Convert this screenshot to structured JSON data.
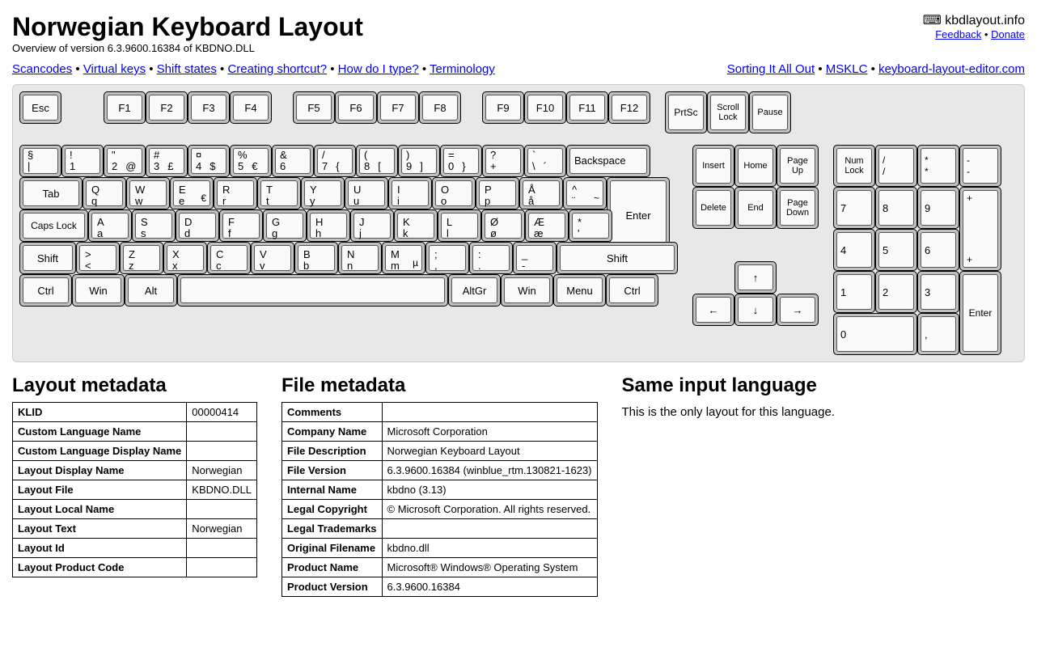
{
  "header": {
    "title": "Norwegian Keyboard Layout",
    "subtitle": "Overview of version 6.3.9600.16384 of KBDNO.DLL",
    "site_icon": "⌨",
    "site_name": "kbdlayout.info",
    "feedback": "Feedback",
    "donate": "Donate"
  },
  "nav_left": [
    "Scancodes",
    "Virtual keys",
    "Shift states",
    "Creating shortcut?",
    "How do I type?",
    "Terminology"
  ],
  "nav_right": [
    "Sorting It All Out",
    "MSKLC",
    "keyboard-layout-editor.com"
  ],
  "func": {
    "esc": "Esc",
    "f1": "F1",
    "f2": "F2",
    "f3": "F3",
    "f4": "F4",
    "f5": "F5",
    "f6": "F6",
    "f7": "F7",
    "f8": "F8",
    "f9": "F9",
    "f10": "F10",
    "f11": "F11",
    "f12": "F12",
    "prtsc": "PrtSc",
    "scroll": "Scroll Lock",
    "pause": "Pause"
  },
  "nav": {
    "insert": "Insert",
    "home": "Home",
    "pgup": "Page Up",
    "delete": "Delete",
    "end": "End",
    "pgdn": "Page Down",
    "up": "↑",
    "down": "↓",
    "left": "←",
    "right": "→"
  },
  "numpad": {
    "numlock": "Num Lock",
    "div_t": "/",
    "div_b": "/",
    "mul_t": "*",
    "mul_b": "*",
    "sub_t": "-",
    "sub_b": "-",
    "plus_t": "+",
    "plus_b": "+",
    "enter": "Enter",
    "dot": ",",
    "n0": "0",
    "n1": "1",
    "n2": "2",
    "n3": "3",
    "n4": "4",
    "n5": "5",
    "n6": "6",
    "n7": "7",
    "n8": "8",
    "n9": "9"
  },
  "numrow": [
    {
      "t": "§",
      "b": "|",
      "a": ""
    },
    {
      "t": "!",
      "b": "1",
      "a": ""
    },
    {
      "t": "\"",
      "b": "2",
      "a": "@"
    },
    {
      "t": "#",
      "b": "3",
      "a": "£"
    },
    {
      "t": "¤",
      "b": "4",
      "a": "$"
    },
    {
      "t": "%",
      "b": "5",
      "a": "€"
    },
    {
      "t": "&",
      "b": "6",
      "a": ""
    },
    {
      "t": "/",
      "b": "7",
      "a": "{"
    },
    {
      "t": "(",
      "b": "8",
      "a": "["
    },
    {
      "t": ")",
      "b": "9",
      "a": "]"
    },
    {
      "t": "=",
      "b": "0",
      "a": "}"
    },
    {
      "t": "?",
      "b": "+",
      "a": ""
    },
    {
      "t": "`",
      "b": "\\",
      "a": "´"
    }
  ],
  "backspace": "Backspace",
  "tab": "Tab",
  "caps": "Caps Lock",
  "shift": "Shift",
  "ctrl": "Ctrl",
  "win": "Win",
  "alt": "Alt",
  "altgr": "AltGr",
  "menu": "Menu",
  "row_q": [
    {
      "u": "Q",
      "l": "q"
    },
    {
      "u": "W",
      "l": "w"
    },
    {
      "u": "E",
      "l": "e",
      "a": "€"
    },
    {
      "u": "R",
      "l": "r"
    },
    {
      "u": "T",
      "l": "t"
    },
    {
      "u": "Y",
      "l": "y"
    },
    {
      "u": "U",
      "l": "u"
    },
    {
      "u": "I",
      "l": "i"
    },
    {
      "u": "O",
      "l": "o"
    },
    {
      "u": "P",
      "l": "p"
    },
    {
      "u": "Å",
      "l": "å"
    },
    {
      "u": "^",
      "l": "¨",
      "a": "~"
    }
  ],
  "row_a": [
    {
      "u": "A",
      "l": "a"
    },
    {
      "u": "S",
      "l": "s"
    },
    {
      "u": "D",
      "l": "d"
    },
    {
      "u": "F",
      "l": "f"
    },
    {
      "u": "G",
      "l": "g"
    },
    {
      "u": "H",
      "l": "h"
    },
    {
      "u": "J",
      "l": "j"
    },
    {
      "u": "K",
      "l": "k"
    },
    {
      "u": "L",
      "l": "l"
    },
    {
      "u": "Ø",
      "l": "ø"
    },
    {
      "u": "Æ",
      "l": "æ"
    },
    {
      "u": "*",
      "l": "'"
    }
  ],
  "row_z": [
    {
      "u": ">",
      "l": "<"
    },
    {
      "u": "Z",
      "l": "z"
    },
    {
      "u": "X",
      "l": "x"
    },
    {
      "u": "C",
      "l": "c"
    },
    {
      "u": "V",
      "l": "v"
    },
    {
      "u": "B",
      "l": "b"
    },
    {
      "u": "N",
      "l": "n"
    },
    {
      "u": "M",
      "l": "m",
      "a": "µ"
    },
    {
      "u": ";",
      "l": ","
    },
    {
      "u": ":",
      "l": "."
    },
    {
      "u": "_",
      "l": "-"
    }
  ],
  "meta_layout": {
    "title": "Layout metadata",
    "rows": [
      [
        "KLID",
        "00000414"
      ],
      [
        "Custom Language Name",
        ""
      ],
      [
        "Custom Language Display Name",
        ""
      ],
      [
        "Layout Display Name",
        "Norwegian"
      ],
      [
        "Layout File",
        "KBDNO.DLL"
      ],
      [
        "Layout Local Name",
        ""
      ],
      [
        "Layout Text",
        "Norwegian"
      ],
      [
        "Layout Id",
        ""
      ],
      [
        "Layout Product Code",
        ""
      ]
    ]
  },
  "meta_file": {
    "title": "File metadata",
    "rows": [
      [
        "Comments",
        ""
      ],
      [
        "Company Name",
        "Microsoft Corporation"
      ],
      [
        "File Description",
        "Norwegian Keyboard Layout"
      ],
      [
        "File Version",
        "6.3.9600.16384 (winblue_rtm.130821-1623)"
      ],
      [
        "Internal Name",
        "kbdno (3.13)"
      ],
      [
        "Legal Copyright",
        "© Microsoft Corporation. All rights reserved."
      ],
      [
        "Legal Trademarks",
        ""
      ],
      [
        "Original Filename",
        "kbdno.dll"
      ],
      [
        "Product Name",
        "Microsoft® Windows® Operating System"
      ],
      [
        "Product Version",
        "6.3.9600.16384"
      ]
    ]
  },
  "same_lang": {
    "title": "Same input language",
    "text": "This is the only layout for this language."
  }
}
